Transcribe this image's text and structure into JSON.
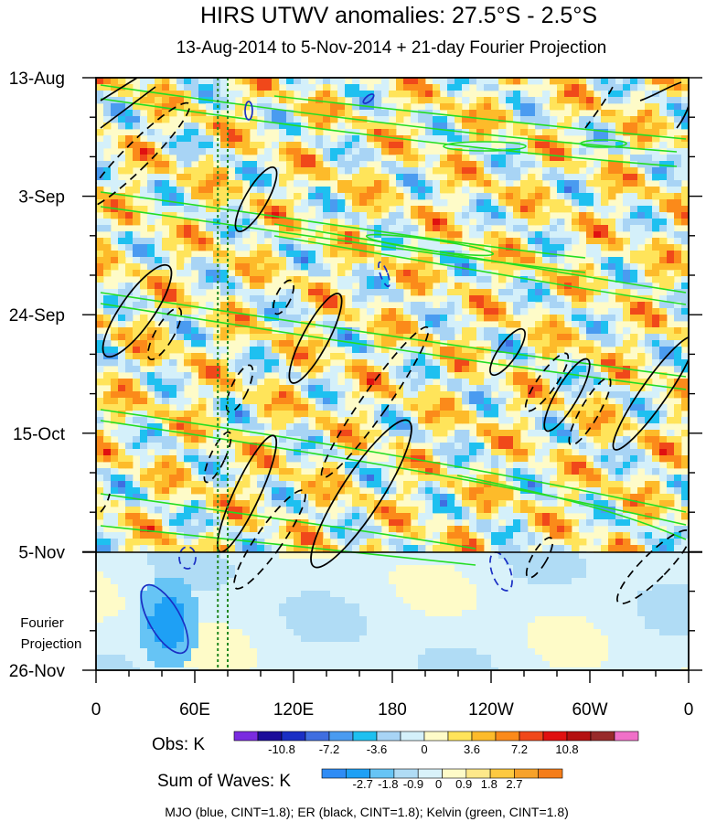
{
  "chart_data": {
    "type": "heatmap",
    "title": "HIRS UTWV anomalies: 27.5°S - 2.5°S",
    "subtitle": "13-Aug-2014 to 5-Nov-2014 + 21-day Fourier Projection",
    "x_ticks": [
      "0",
      "60E",
      "120E",
      "180",
      "120W",
      "60W",
      "0"
    ],
    "x_range_deg_east": [
      0,
      360
    ],
    "y_ticks": [
      "13-Aug",
      "3-Sep",
      "24-Sep",
      "15-Oct",
      "5-Nov",
      "26-Nov"
    ],
    "y_range_days_from_start": [
      0,
      105
    ],
    "observation_end": "5-Nov",
    "projection_label": [
      "Fourier",
      "Projection"
    ],
    "reference_longitudes_deg_east": [
      74,
      80
    ],
    "obs_legend": {
      "label": "Obs: K",
      "tick_labels": [
        "-10.8",
        "-7.2",
        "-3.6",
        "0",
        "3.6",
        "7.2",
        "10.8"
      ],
      "colors": [
        "#7a2be0",
        "#1c0d9a",
        "#1a2fc4",
        "#3f6ee0",
        "#4a9bf0",
        "#1ec0f0",
        "#a8d4f5",
        "#d4f0fa",
        "#fefbc8",
        "#ffe45a",
        "#fdbb2a",
        "#fb8a1a",
        "#f0481a",
        "#e01010",
        "#b41010",
        "#982a2a",
        "#f070c8"
      ]
    },
    "waves_legend": {
      "label": "Sum of Waves: K",
      "tick_labels": [
        "-2.7",
        "-1.8",
        "-0.9",
        "0",
        "0.9",
        "1.8",
        "2.7"
      ],
      "colors": [
        "#2f8cf5",
        "#1ea0f5",
        "#66c4f5",
        "#b0dcf5",
        "#d9f2fa",
        "#fefbc8",
        "#fee88a",
        "#fdc940",
        "#f7a22a",
        "#f57d1a"
      ]
    },
    "contours_caption": "MJO (blue, CINT=1.8); ER (black, CINT=1.8); Kelvin (green, CINT=1.8)",
    "contour_colors": {
      "mjo": "#1a2fc4",
      "er": "#000000",
      "kelvin": "#22dd22",
      "reference": "#228822"
    }
  }
}
